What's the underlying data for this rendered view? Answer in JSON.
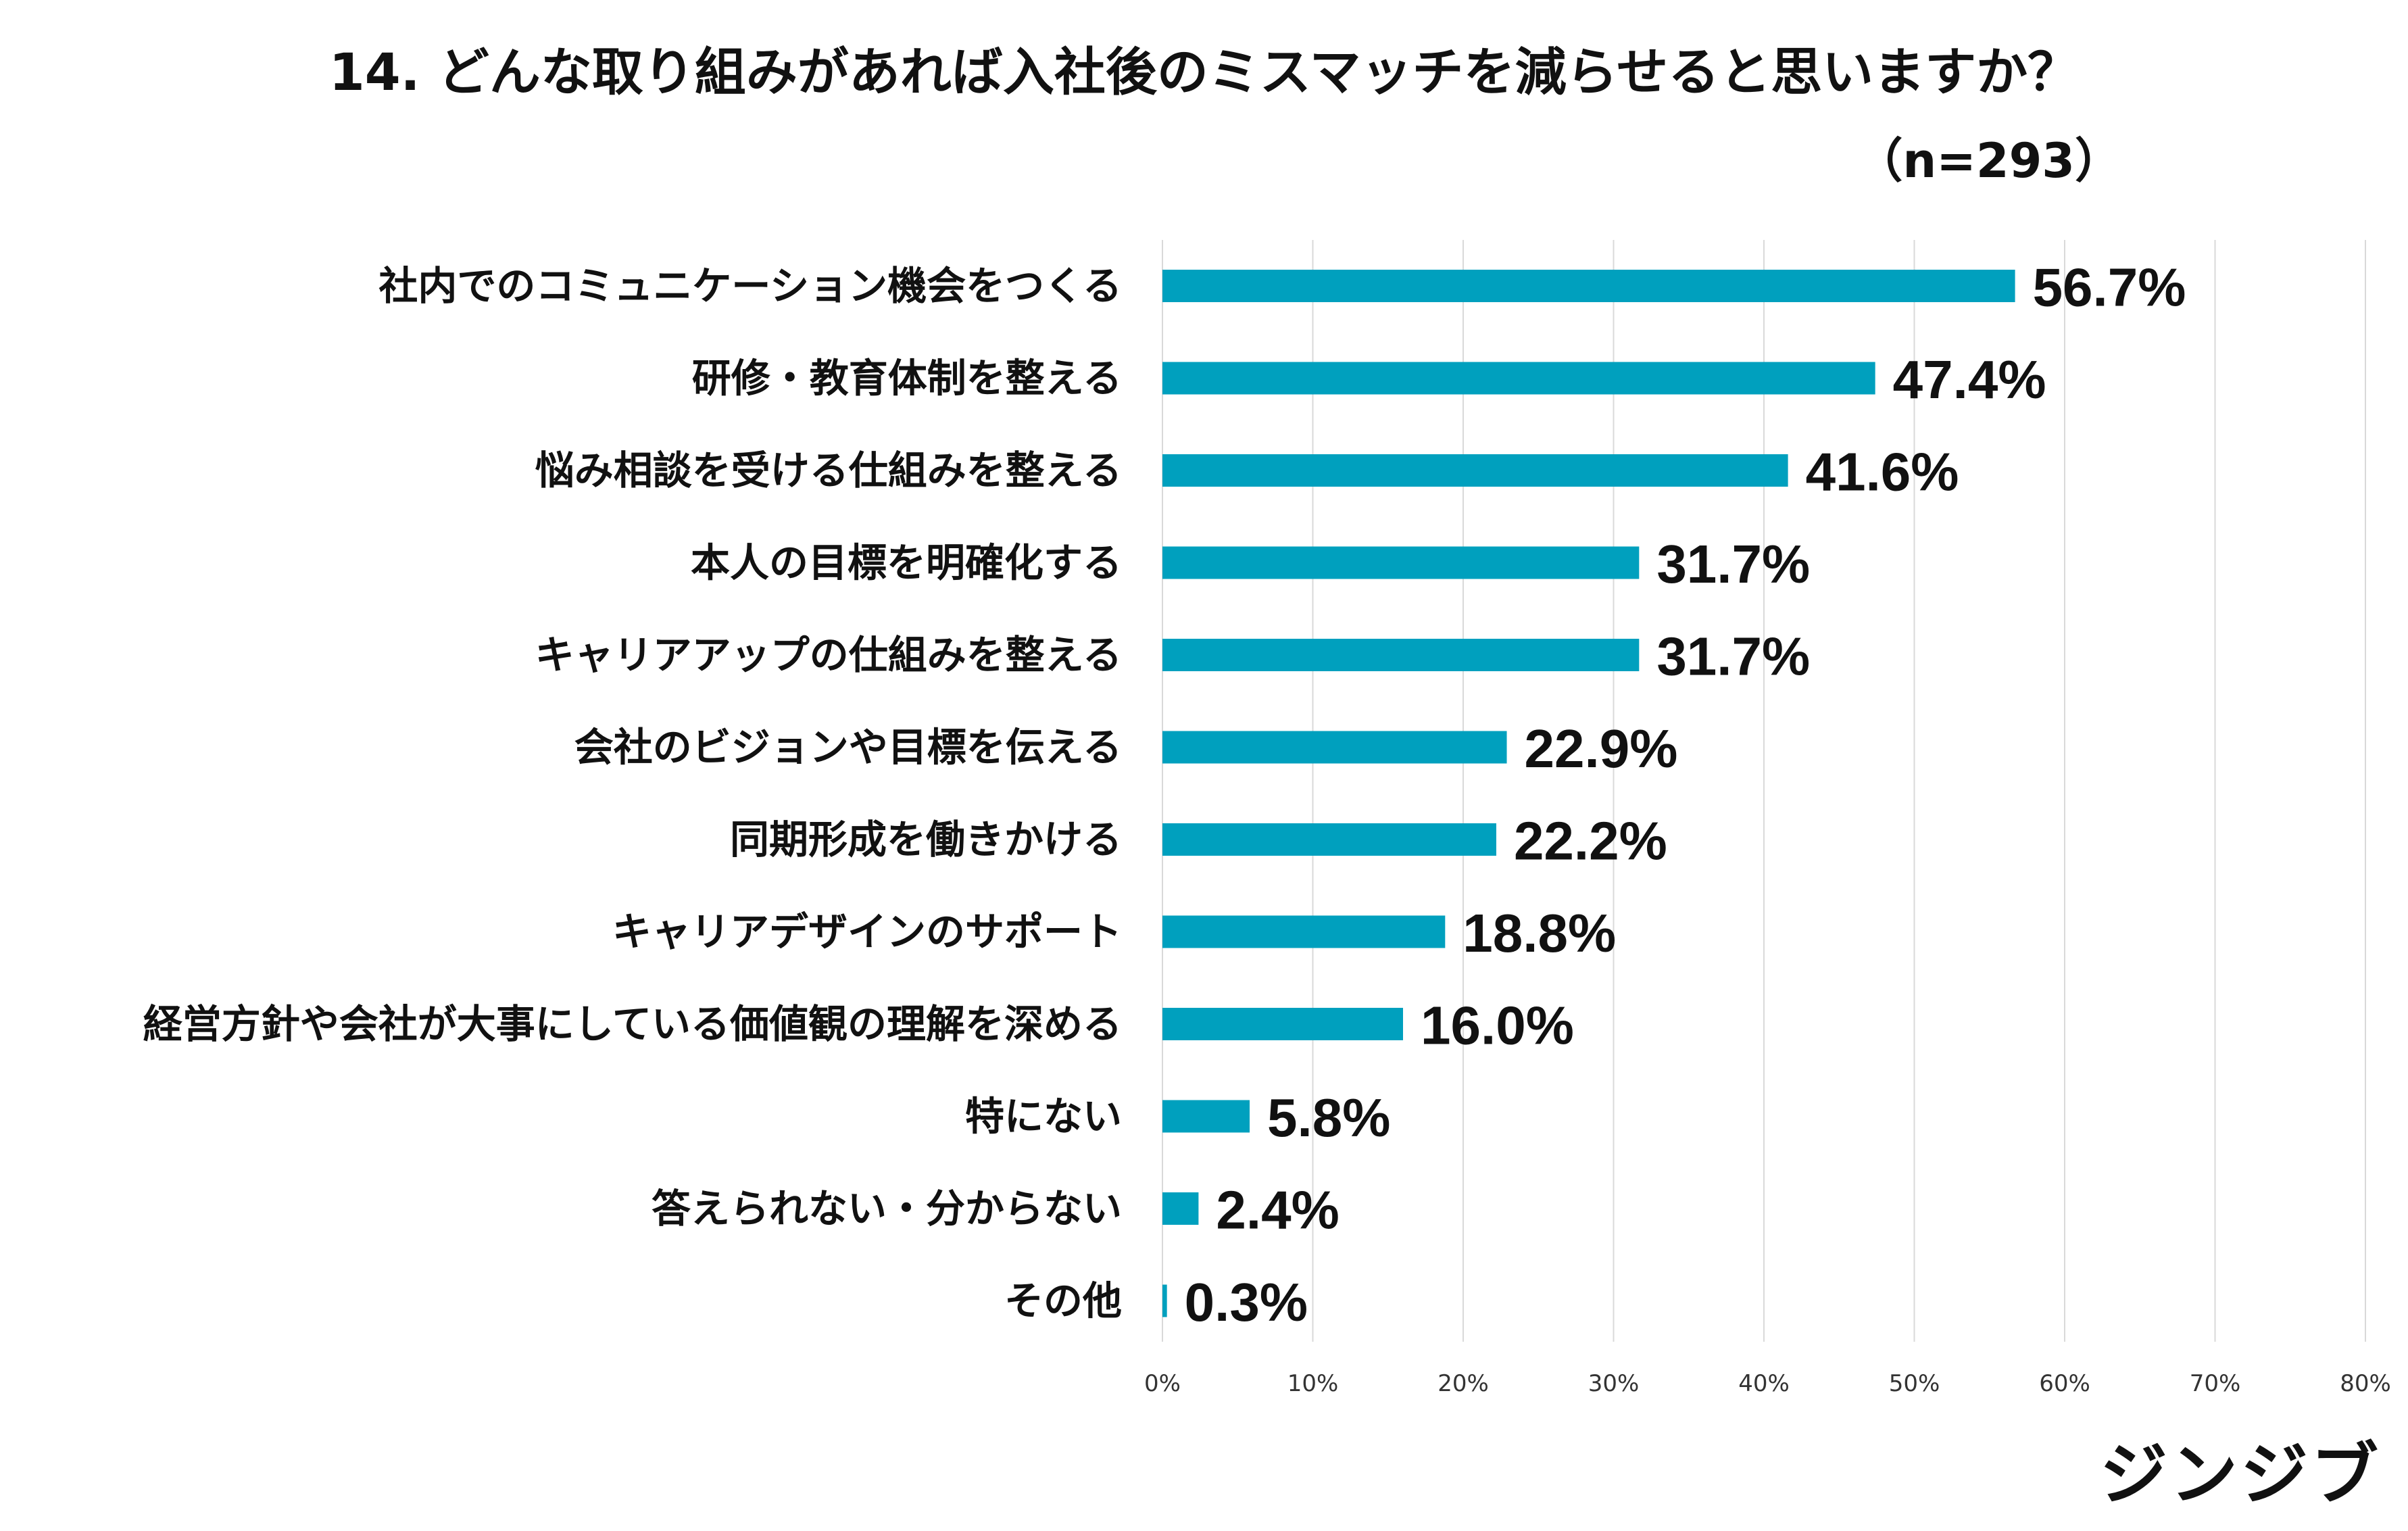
{
  "title": "14. どんな取り組みがあれば入社後のミスマッチを減らせると思いますか？",
  "sample_size": "（n=293）",
  "brand": "ジンジブ",
  "colors": {
    "bar": "#00A0BE",
    "grid": "#D9D9D9",
    "text": "#111111"
  },
  "chart_data": {
    "type": "bar",
    "orientation": "horizontal",
    "categories": [
      "社内でのコミュニケーション機会をつくる",
      "研修・教育体制を整える",
      "悩み相談を受ける仕組みを整える",
      "本人の目標を明確化する",
      "キャリアアップの仕組みを整える",
      "会社のビジョンや目標を伝える",
      "同期形成を働きかける",
      "キャリアデザインのサポート",
      "経営方針や会社が大事にしている価値観の理解を深める",
      "特にない",
      "答えられない・分からない",
      "その他"
    ],
    "values": [
      56.7,
      47.4,
      41.6,
      31.7,
      31.7,
      22.9,
      22.2,
      18.8,
      16.0,
      5.8,
      2.4,
      0.3
    ],
    "value_labels": [
      "56.7%",
      "47.4%",
      "41.6%",
      "31.7%",
      "31.7%",
      "22.9%",
      "22.2%",
      "18.8%",
      "16.0%",
      "5.8%",
      "2.4%",
      "0.3%"
    ],
    "xlim": [
      0,
      80
    ],
    "x_ticks": [
      0,
      10,
      20,
      30,
      40,
      50,
      60,
      70,
      80
    ],
    "x_tick_labels": [
      "0%",
      "10%",
      "20%",
      "30%",
      "40%",
      "50%",
      "60%",
      "70%",
      "80%"
    ],
    "grid": true,
    "legend": "none"
  }
}
